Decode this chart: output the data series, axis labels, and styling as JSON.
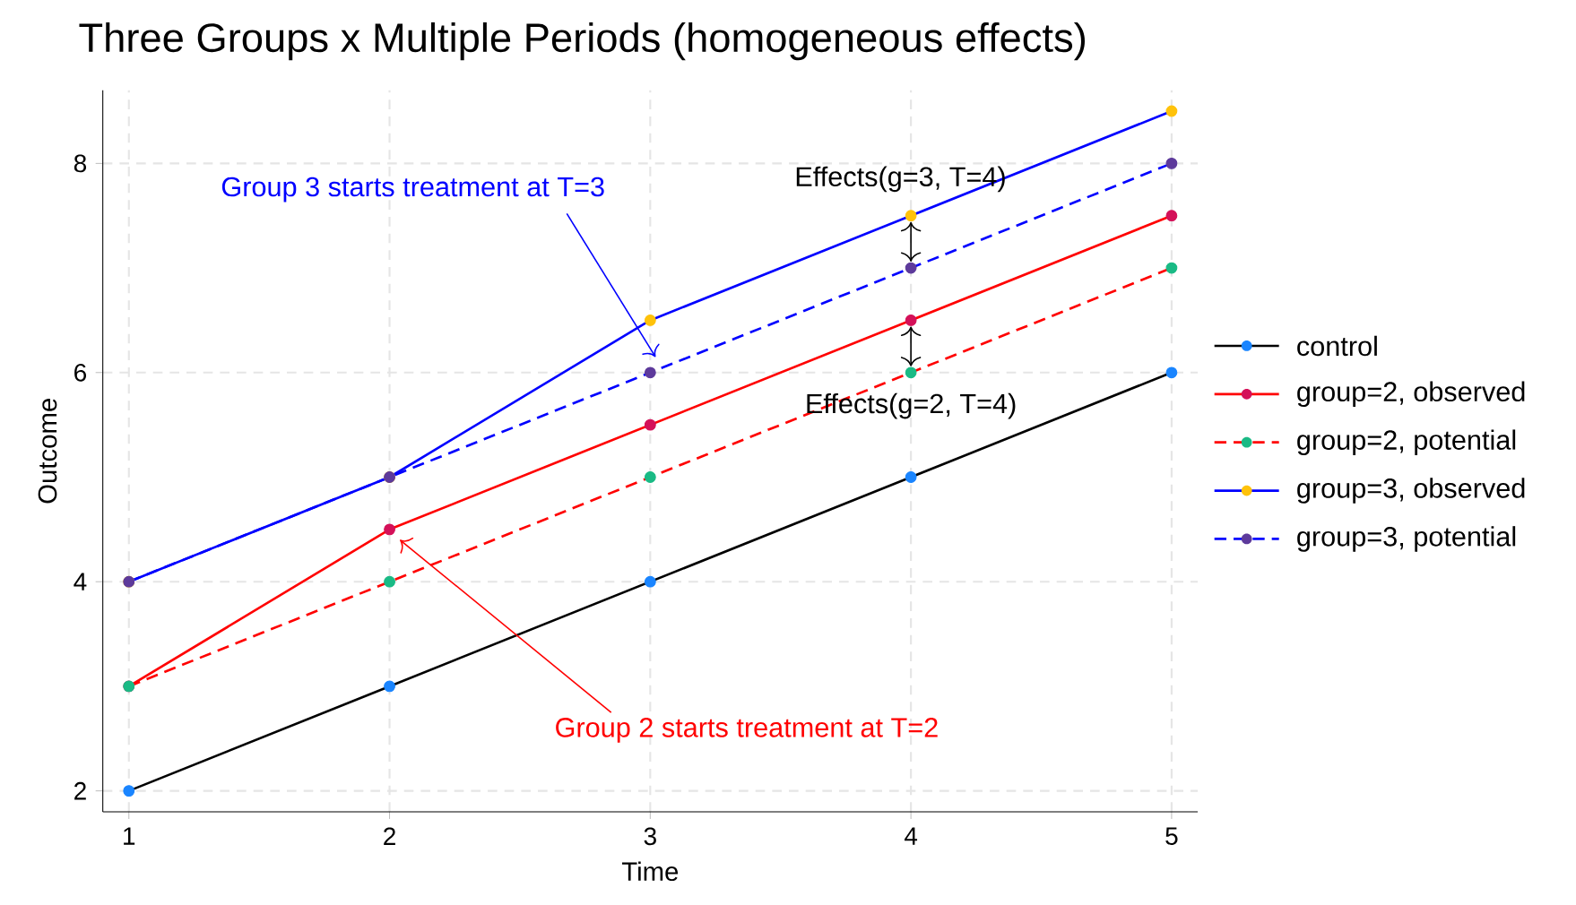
{
  "chart_data": {
    "type": "line",
    "title": "Three Groups x Multiple Periods (homogeneous effects)",
    "xlabel": "Time",
    "ylabel": "Outcome",
    "x": [
      1,
      2,
      3,
      4,
      5
    ],
    "xlim": [
      0.9,
      5.1
    ],
    "ylim": [
      1.8,
      8.7
    ],
    "xticks": [
      1,
      2,
      3,
      4,
      5
    ],
    "yticks": [
      2,
      4,
      6,
      8
    ],
    "grid": true,
    "legend": "right",
    "marker": "circle",
    "series": [
      {
        "name": "control",
        "color": "#000000",
        "colors": [
          "#1a85ff",
          "#1a85ff",
          "#1a85ff",
          "#1a85ff",
          "#1a85ff"
        ],
        "values": [
          2,
          3,
          4,
          5,
          6
        ]
      },
      {
        "name": "group=2, observed",
        "color": "#ff0000",
        "colors": [
          "#d41159",
          "#d41159",
          "#d41159",
          "#d41159",
          "#d41159"
        ],
        "values": [
          3,
          4.5,
          5.5,
          6.5,
          7.5
        ]
      },
      {
        "name": "group=2, potential",
        "color": "#ff0000",
        "line_style": "dashed",
        "colors": [
          "#1aba85",
          "#1aba85",
          "#1aba85",
          "#1aba85",
          "#1aba85"
        ],
        "values": [
          3,
          4,
          5,
          6,
          7
        ]
      },
      {
        "name": "group=3, observed",
        "color": "#0000ff",
        "colors": [
          "#ffc20a",
          "#ffc20a",
          "#ffc20a",
          "#ffc20a",
          "#ffc20a"
        ],
        "values": [
          4,
          5,
          6.5,
          7.5,
          8.5
        ]
      },
      {
        "name": "group=3, potential",
        "color": "#0000ff",
        "line_style": "dashed",
        "colors": [
          "#5d3a9b",
          "#5d3a9b",
          "#5d3a9b",
          "#5d3a9b",
          "#5d3a9b"
        ],
        "values": [
          4,
          5,
          6,
          7,
          8
        ]
      }
    ],
    "annotations": [
      "Group 3 starts treatment at T=3",
      "Group 2 starts treatment at T=2",
      {
        "text": "Effects(g=3, T=4)",
        "x": 4,
        "y": 7.5
      },
      {
        "text": "Effects(g=2, T=4)",
        "x": 4,
        "y": 6.5
      }
    ]
  }
}
